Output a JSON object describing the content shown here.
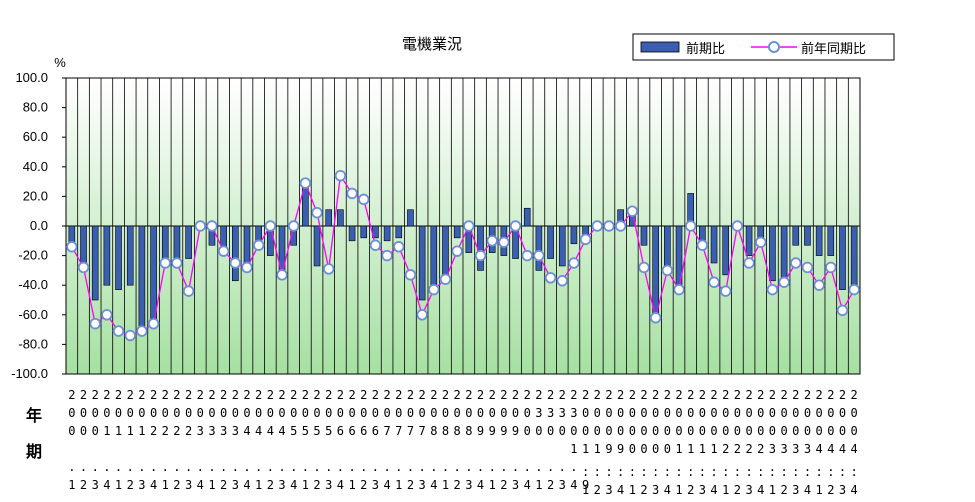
{
  "chart_data": {
    "type": "bar",
    "title": "電機業況",
    "yunit": "%",
    "ylim": [
      -100,
      100
    ],
    "ystep": 20,
    "yticks": [
      "100.0",
      "80.0",
      "60.0",
      "40.0",
      "20.0",
      "0.0",
      "-20.0",
      "-40.0",
      "-60.0",
      "-80.0",
      "-100.0"
    ],
    "row_labels": [
      "年",
      "期"
    ],
    "categories": [
      "2000.1",
      "2000.2",
      "2000.3",
      "2000.4",
      "2001.1",
      "2001.2",
      "2001.3",
      "2001.4",
      "2002.1",
      "2002.2",
      "2002.3",
      "2002.4",
      "2003.1",
      "2003.2",
      "2003.3",
      "2003.4",
      "2004.1",
      "2004.2",
      "2004.3",
      "2004.4",
      "2005.1",
      "2005.2",
      "2005.3",
      "2005.4",
      "2006.1",
      "2006.2",
      "2006.3",
      "2006.4",
      "2007.1",
      "2007.2",
      "2007.3",
      "2007.4",
      "2008.1",
      "2008.2",
      "2008.3",
      "2008.4",
      "2009.1",
      "2009.2",
      "2009.3",
      "2009.4",
      "2010.1",
      "2010.2",
      "2010.3",
      "2010.4",
      "2011.1",
      "2011.2",
      "2011.3",
      "2011.4",
      "2012.1",
      "2012.2",
      "2012.3",
      "2012.4",
      "2013.1",
      "2013.2",
      "2013.3",
      "2013.4",
      "2014.1",
      "2014.2",
      "2014.3",
      "2014.4",
      "2015.1",
      "2015.2",
      "2015.3",
      "2015.4",
      "2016.1",
      "2016.2",
      "2016.3",
      "2016.4"
    ],
    "x_rows": [
      [
        "2",
        "2",
        "2",
        "2",
        "2",
        "2",
        "2",
        "2",
        "2",
        "2",
        "2",
        "2",
        "2",
        "2",
        "2",
        "2",
        "2",
        "2",
        "2",
        "2",
        "2",
        "2",
        "2",
        "2",
        "2",
        "2",
        "2",
        "2",
        "2",
        "2",
        "2",
        "2",
        "2",
        "2",
        "2",
        "2",
        "2",
        "2",
        "2",
        "2",
        "2",
        "2",
        "2",
        "2",
        "2",
        "2",
        "2",
        "2",
        "2",
        "2",
        "2",
        "2",
        "2",
        "2",
        "2",
        "2",
        "2",
        "2",
        "2",
        "2",
        "2",
        "2",
        "2",
        "2",
        "2",
        "2",
        "2",
        "2"
      ],
      [
        "0",
        "0",
        "0",
        "0",
        "0",
        "0",
        "0",
        "0",
        "0",
        "0",
        "0",
        "0",
        "0",
        "0",
        "0",
        "0",
        "0",
        "0",
        "0",
        "0",
        "0",
        "0",
        "0",
        "0",
        "0",
        "0",
        "0",
        "0",
        "0",
        "0",
        "0",
        "0",
        "0",
        "0",
        "0",
        "0",
        "0",
        "0",
        "0",
        "0",
        "3",
        "3",
        "3",
        "3",
        "0",
        "0",
        "0",
        "0",
        "0",
        "0",
        "0",
        "0",
        "0",
        "0",
        "0",
        "0",
        "0",
        "0",
        "0",
        "0",
        "0",
        "0",
        "0",
        "0",
        "0",
        "0",
        "0",
        "0"
      ],
      [
        "0",
        "0",
        "0",
        "1",
        "1",
        "1",
        "1",
        "2",
        "2",
        "2",
        "2",
        "3",
        "3",
        "3",
        "3",
        "4",
        "4",
        "4",
        "4",
        "5",
        "5",
        "5",
        "5",
        "6",
        "6",
        "6",
        "6",
        "7",
        "7",
        "7",
        "7",
        "8",
        "8",
        "8",
        "8",
        "9",
        "9",
        "9",
        "9",
        "0",
        "0",
        "0",
        "0",
        "0",
        "0",
        "0",
        "0",
        "0",
        "0",
        "0",
        "0",
        "0",
        "0",
        "0",
        "0",
        "0",
        "0",
        "0",
        "0",
        "0",
        "0",
        "0",
        "0",
        "0",
        "0",
        "0",
        "0",
        "0"
      ],
      [
        "",
        "",
        "",
        "",
        "",
        "",
        "",
        "",
        "",
        "",
        "",
        "",
        "",
        "",
        "",
        "",
        "",
        "",
        "",
        "",
        "",
        "",
        "",
        "",
        "",
        "",
        "",
        "",
        "",
        "",
        "",
        "",
        "",
        "",
        "",
        "",
        "",
        "",
        "",
        "",
        "",
        "",
        "",
        "1",
        "1",
        "1",
        "9",
        "9",
        "0",
        "0",
        "0",
        "0",
        "1",
        "1",
        "1",
        "1",
        "2",
        "2",
        "2",
        "2",
        "3",
        "3",
        "3",
        "3",
        "4",
        "4",
        "4",
        "4"
      ],
      [
        ".",
        ".",
        ".",
        ".",
        ".",
        ".",
        ".",
        ".",
        ".",
        ".",
        ".",
        ".",
        ".",
        ".",
        ".",
        ".",
        ".",
        ".",
        ".",
        ".",
        ".",
        ".",
        ".",
        ".",
        ".",
        ".",
        ".",
        ".",
        ".",
        ".",
        ".",
        ".",
        ".",
        ".",
        ".",
        ".",
        ".",
        ".",
        ".",
        ".",
        ".",
        ".",
        ".",
        ".",
        ".",
        ".",
        ".",
        ".",
        ".",
        ".",
        ".",
        ".",
        ".",
        ".",
        ".",
        ".",
        ".",
        ".",
        ".",
        ".",
        ".",
        ".",
        ".",
        ".",
        ".",
        ".",
        ".",
        "."
      ],
      [
        "1",
        "2",
        "3",
        "4",
        "1",
        "2",
        "3",
        "4",
        "1",
        "2",
        "3",
        "4",
        "1",
        "2",
        "3",
        "4",
        "1",
        "2",
        "3",
        "4",
        "1",
        "2",
        "3",
        "4",
        "1",
        "2",
        "3",
        "4",
        "1",
        "2",
        "3",
        "4",
        "1",
        "2",
        "3",
        "4",
        "1",
        "2",
        "3",
        "4",
        "1",
        "2",
        "3",
        "4",
        "9",
        "",
        "",
        "",
        "",
        "",
        "",
        "",
        "",
        "",
        "",
        "",
        "",
        "",
        "",
        "",
        "",
        "",
        "",
        "",
        "",
        "",
        "",
        ""
      ],
      [
        "",
        "",
        "",
        "",
        "",
        "",
        "",
        "",
        "",
        "",
        "",
        "",
        "",
        "",
        "",
        "",
        "",
        "",
        "",
        "",
        "",
        "",
        "",
        "",
        "",
        "",
        "",
        "",
        "",
        "",
        "",
        "",
        "",
        "",
        "",
        "",
        "",
        "",
        "",
        "",
        "",
        "",
        "",
        "",
        ".",
        ".",
        ".",
        ".",
        ".",
        ".",
        ".",
        ".",
        ".",
        ".",
        ".",
        ".",
        ".",
        ".",
        ".",
        ".",
        ".",
        ".",
        ".",
        ".",
        ".",
        ".",
        ".",
        "."
      ],
      [
        "",
        "",
        "",
        "",
        "",
        "",
        "",
        "",
        "",
        "",
        "",
        "",
        "",
        "",
        "",
        "",
        "",
        "",
        "",
        "",
        "",
        "",
        "",
        "",
        "",
        "",
        "",
        "",
        "",
        "",
        "",
        "",
        "",
        "",
        "",
        "",
        "",
        "",
        "",
        "",
        "",
        "",
        "",
        "",
        "1",
        "2",
        "3",
        "4",
        "1",
        "2",
        "3",
        "4",
        "1",
        "2",
        "3",
        "4",
        "1",
        "2",
        "3",
        "4",
        "1",
        "2",
        "3",
        "4",
        "1",
        "2",
        "3",
        "4"
      ]
    ],
    "series": [
      {
        "name": "前期比",
        "kind": "bar",
        "color": "#3a5eb0",
        "values": [
          -14,
          -27,
          -50,
          -40,
          -43,
          -40,
          -68,
          -63,
          -25,
          -25,
          -22,
          0,
          -13,
          -18,
          -37,
          -25,
          -13,
          -20,
          -33,
          -13,
          27,
          -27,
          11,
          11,
          -10,
          -8,
          -8,
          -10,
          -8,
          11,
          -50,
          -45,
          -35,
          -8,
          -18,
          -30,
          -18,
          -20,
          -22,
          12,
          -30,
          -22,
          -27,
          -12,
          -8,
          -3,
          0,
          11,
          7,
          -13,
          -60,
          -30,
          -40,
          22,
          -10,
          -25,
          -33,
          0,
          -20,
          -10,
          -37,
          -37,
          -13,
          -13,
          -20,
          -20,
          -43,
          -43
        ]
      },
      {
        "name": "前年同期比",
        "kind": "line",
        "color": "#ff00ff",
        "marker_fill": "#ffffff",
        "marker_edge": "#6b8fd8",
        "values": [
          -14,
          -28,
          -66,
          -60,
          -71,
          -74,
          -71,
          -66,
          -25,
          -25,
          -44,
          0,
          0,
          -17,
          -25,
          -28,
          -13,
          0,
          -33,
          0,
          29,
          9,
          -29,
          34,
          22,
          18,
          -13,
          -20,
          -14,
          -33,
          -60,
          -43,
          -36,
          -17,
          0,
          -20,
          -10,
          -11,
          0,
          -20,
          -20,
          -35,
          -37,
          -25,
          -9,
          0,
          0,
          0,
          10,
          -28,
          -62,
          -30,
          -43,
          0,
          -13,
          -38,
          -44,
          0,
          -25,
          -11,
          -43,
          -38,
          -25,
          -28,
          -40,
          -28,
          -57,
          -43
        ]
      }
    ],
    "grid": true,
    "legend": "top-right"
  }
}
